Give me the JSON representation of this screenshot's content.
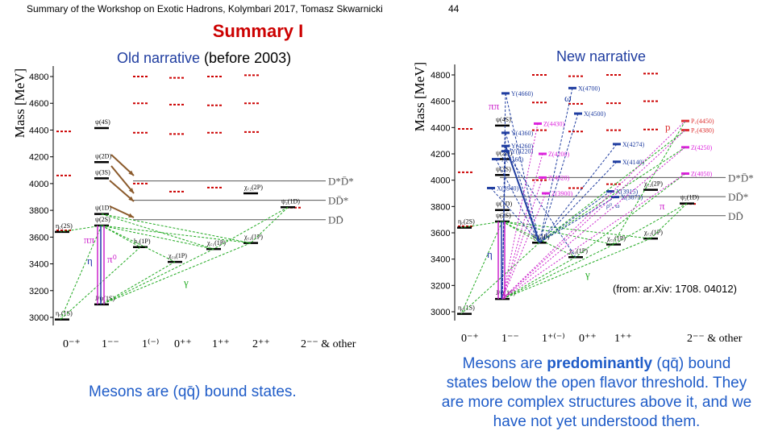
{
  "header": {
    "title": "Summary of the Workshop on Exotic Hadrons, Kolymbari 2017, Tomasz Skwarnicki",
    "page_number": "44"
  },
  "slide_title": "Summary I",
  "left_panel": {
    "heading_prefix": "Old narrative",
    "heading_suffix": " (before 2003)",
    "y_axis_label": "Mass [MeV]",
    "y_ticks": [
      "3000",
      "3200",
      "3400",
      "3600",
      "3800",
      "4000",
      "4200",
      "4400",
      "4600",
      "4800"
    ],
    "jpc_labels": [
      "0⁻⁺",
      "1⁻⁻",
      "1⁽⁻⁾",
      "0⁺⁺",
      "1⁺⁺",
      "2⁺⁺",
      "2⁻⁻ & other"
    ],
    "thresholds": [
      "D*D̄*",
      "DD̄*",
      "DD̄"
    ],
    "transition_labels": [
      "ππ",
      "η",
      "π⁰",
      "γ"
    ],
    "states": [
      "η꜀(1S)",
      "J/ψ(1S)",
      "η꜀(2S)",
      "ψ(2S)",
      "ψ(1D)",
      "ψ(3S)",
      "ψ(2D)",
      "ψ(4S)",
      "h꜀(1P)",
      "χ꜀₀(1P)",
      "χ꜀₁(1P)",
      "χ꜀₂(1P)",
      "χ꜀₂(2P)",
      "ψ₂(1D)"
    ],
    "caption": "Mesons are (qq̄) bound states."
  },
  "right_panel": {
    "heading": "New narrative",
    "y_axis_label": "Mass [MeV]",
    "y_ticks": [
      "3000",
      "3200",
      "3400",
      "3600",
      "3800",
      "4000",
      "4200",
      "4400",
      "4600",
      "4800"
    ],
    "jpc_labels": [
      "0⁻⁺",
      "1⁻⁻",
      "1⁺⁽⁻⁾",
      "0⁺⁺",
      "1⁺⁺",
      "2⁻⁻ & other"
    ],
    "thresholds": [
      "D*D̄*",
      "DD̄*",
      "DD̄"
    ],
    "transition_labels": [
      "ππ",
      "η",
      "π",
      "γ",
      "ω",
      "ρ⁰, ω",
      "p"
    ],
    "states": [
      "Y(4660)",
      "Y(4360)",
      "Y(4260)",
      "Y(4220)",
      "X(4700)",
      "X(4500)",
      "X(4274)",
      "X(4140)",
      "X(3915)",
      "X(3872)",
      "X(4160)",
      "X(3940)",
      "Z(4430)",
      "Z(4200)",
      "Z(4020)",
      "Z(3900)",
      "Z(4250)",
      "Z(4050)",
      "P꜀(4450)",
      "P꜀(4380)",
      "η꜀(1S)",
      "J/ψ(1S)",
      "η꜀(2S)",
      "ψ(2S)",
      "ψ(1D)",
      "ψ(3S)",
      "ψ(2D)",
      "ψ(4S)",
      "h꜀(1P)",
      "χ꜀₀(1P)",
      "χ꜀₁(1P)",
      "χ꜀₂(1P)",
      "χ꜀₂(2P)",
      "ψ₂(1D)"
    ],
    "credit": "(from: ar.Xiv: 1708. 04012)",
    "caption_line1_a": "Mesons are ",
    "caption_line1_bold": "predominantly",
    "caption_line1_b": " (qq̄) bound",
    "caption_line2": "states below the open flavor threshold. They",
    "caption_line3": "are more complex structures above it, and we",
    "caption_line4": "have not yet understood them."
  },
  "colors": {
    "title_red": "#cc0000",
    "caption_blue": "#1f5cc8",
    "level_red": "#cc0000",
    "transition_green": "#22aa22",
    "transition_magenta": "#cc22cc",
    "threshold_line": "#555555",
    "exotic_blue": "#1f3da0",
    "exotic_magenta": "#dd22dd",
    "pentaquark_red": "#dd3333"
  }
}
